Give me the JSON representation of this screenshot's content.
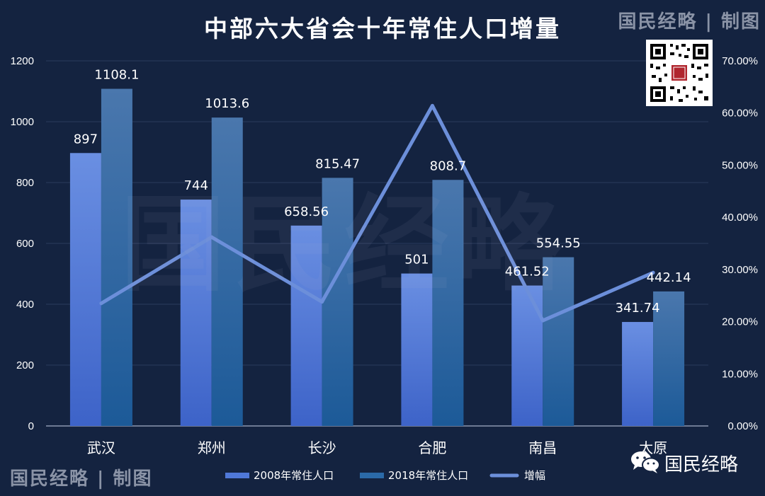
{
  "header": {
    "title": "中部六大省会十年常住人口增量",
    "brand_top": "国民经略 | 制图",
    "brand_bottom": "国民经略 | 制图",
    "watermark": "国民经略"
  },
  "footer": {
    "wechat_label": "国民经略"
  },
  "icons": {
    "wechat": "wechat-icon",
    "qr": "qr-code-icon"
  },
  "colors": {
    "background": "#142340",
    "series_2008": "#4f78d8",
    "series_2018": "#2b6aa8",
    "line": "#6c8fda",
    "axis_text": "#ffffff"
  },
  "chart_data": {
    "type": "bar",
    "categories": [
      "武汉",
      "郑州",
      "长沙",
      "合肥",
      "南昌",
      "太原"
    ],
    "series": [
      {
        "name": "2008年常住人口",
        "type": "bar",
        "axis": "left",
        "values": [
          897,
          744,
          658.56,
          501,
          461.52,
          341.74
        ],
        "labels": [
          "897",
          "744",
          "658.56",
          "501",
          "461.52",
          "341.74"
        ]
      },
      {
        "name": "2018年常住人口",
        "type": "bar",
        "axis": "left",
        "values": [
          1108.1,
          1013.6,
          815.47,
          808.7,
          554.55,
          442.14
        ],
        "labels": [
          "1108.1",
          "1013.6",
          "815.47",
          "808.7",
          "554.55",
          "442.14"
        ]
      },
      {
        "name": "增幅",
        "type": "line",
        "axis": "right",
        "values": [
          23.5,
          36.2,
          23.8,
          61.4,
          20.2,
          29.4
        ]
      }
    ],
    "left_axis": {
      "min": 0,
      "max": 1200,
      "ticks": [
        "0",
        "200",
        "400",
        "600",
        "800",
        "1000",
        "1200"
      ]
    },
    "right_axis": {
      "min": 0,
      "max": 70,
      "ticks": [
        "0.00%",
        "10.00%",
        "20.00%",
        "30.00%",
        "40.00%",
        "50.00%",
        "60.00%",
        "70.00%"
      ]
    },
    "grid": true,
    "legend_position": "bottom"
  }
}
